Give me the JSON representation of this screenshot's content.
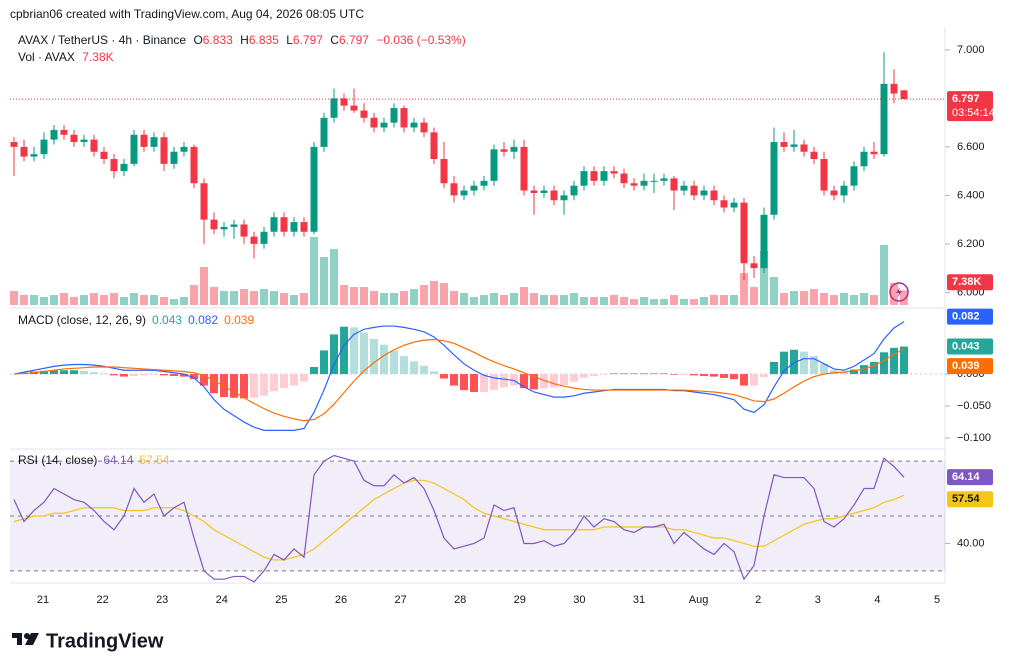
{
  "header": {
    "attribution": "cpbrian06 created with TradingView.com, Aug 04, 2026 08:05 UTC",
    "symbol": "AVAX / TetherUS · 4h · Binance",
    "o": "O",
    "h": "H",
    "l": "L",
    "c": "C",
    "change": "−0.036 (−0.53%)",
    "countdown": "03:54:14"
  },
  "brand": "TradingView",
  "time_axis": {
    "labels": [
      "21",
      "22",
      "23",
      "24",
      "25",
      "26",
      "27",
      "28",
      "29",
      "30",
      "31",
      "Aug",
      "2",
      "3",
      "4",
      "5"
    ]
  },
  "chart_data": [
    {
      "type": "candlestick",
      "colors": {
        "up": "#089981",
        "down": "#f23645"
      },
      "ylim": [
        5.948,
        7.082
      ],
      "yticks": [
        {
          "value": 6.0,
          "label": "6.000"
        },
        {
          "value": 6.2,
          "label": "6.200"
        },
        {
          "value": 6.4,
          "label": "6.400"
        },
        {
          "value": 6.6,
          "label": "6.600"
        },
        {
          "value": 7.0,
          "label": "7.000"
        }
      ],
      "last_price_line": true,
      "candles": [
        [
          6.62,
          6.64,
          6.48,
          6.6
        ],
        [
          6.6,
          6.63,
          6.54,
          6.56
        ],
        [
          6.56,
          6.6,
          6.54,
          6.57
        ],
        [
          6.57,
          6.66,
          6.55,
          6.63
        ],
        [
          6.63,
          6.69,
          6.61,
          6.67
        ],
        [
          6.67,
          6.69,
          6.63,
          6.65
        ],
        [
          6.65,
          6.67,
          6.6,
          6.62
        ],
        [
          6.62,
          6.65,
          6.6,
          6.63
        ],
        [
          6.63,
          6.65,
          6.56,
          6.58
        ],
        [
          6.58,
          6.6,
          6.53,
          6.55
        ],
        [
          6.55,
          6.57,
          6.47,
          6.5
        ],
        [
          6.5,
          6.55,
          6.48,
          6.53
        ],
        [
          6.53,
          6.67,
          6.52,
          6.65
        ],
        [
          6.65,
          6.67,
          6.58,
          6.6
        ],
        [
          6.6,
          6.66,
          6.58,
          6.64
        ],
        [
          6.64,
          6.66,
          6.5,
          6.53
        ],
        [
          6.53,
          6.6,
          6.51,
          6.58
        ],
        [
          6.58,
          6.62,
          6.56,
          6.6
        ],
        [
          6.6,
          6.61,
          6.43,
          6.45
        ],
        [
          6.45,
          6.47,
          6.2,
          6.3
        ],
        [
          6.3,
          6.33,
          6.24,
          6.26
        ],
        [
          6.26,
          6.29,
          6.23,
          6.27
        ],
        [
          6.27,
          6.3,
          6.22,
          6.28
        ],
        [
          6.28,
          6.3,
          6.2,
          6.23
        ],
        [
          6.23,
          6.25,
          6.14,
          6.2
        ],
        [
          6.2,
          6.27,
          6.18,
          6.25
        ],
        [
          6.25,
          6.33,
          6.23,
          6.31
        ],
        [
          6.31,
          6.33,
          6.23,
          6.25
        ],
        [
          6.25,
          6.31,
          6.23,
          6.29
        ],
        [
          6.29,
          6.31,
          6.23,
          6.25
        ],
        [
          6.25,
          6.62,
          6.24,
          6.6
        ],
        [
          6.6,
          6.74,
          6.58,
          6.72
        ],
        [
          6.72,
          6.84,
          6.7,
          6.8
        ],
        [
          6.8,
          6.82,
          6.75,
          6.77
        ],
        [
          6.77,
          6.84,
          6.74,
          6.75
        ],
        [
          6.75,
          6.78,
          6.7,
          6.72
        ],
        [
          6.72,
          6.74,
          6.66,
          6.68
        ],
        [
          6.68,
          6.72,
          6.66,
          6.7
        ],
        [
          6.7,
          6.78,
          6.68,
          6.76
        ],
        [
          6.76,
          6.77,
          6.66,
          6.68
        ],
        [
          6.68,
          6.72,
          6.66,
          6.7
        ],
        [
          6.7,
          6.72,
          6.64,
          6.66
        ],
        [
          6.66,
          6.68,
          6.53,
          6.55
        ],
        [
          6.55,
          6.62,
          6.43,
          6.45
        ],
        [
          6.45,
          6.48,
          6.37,
          6.4
        ],
        [
          6.4,
          6.44,
          6.38,
          6.42
        ],
        [
          6.42,
          6.46,
          6.4,
          6.44
        ],
        [
          6.44,
          6.48,
          6.42,
          6.46
        ],
        [
          6.46,
          6.61,
          6.44,
          6.59
        ],
        [
          6.59,
          6.62,
          6.56,
          6.58
        ],
        [
          6.58,
          6.63,
          6.55,
          6.6
        ],
        [
          6.6,
          6.63,
          6.4,
          6.42
        ],
        [
          6.42,
          6.44,
          6.32,
          6.41
        ],
        [
          6.41,
          6.44,
          6.39,
          6.42
        ],
        [
          6.42,
          6.44,
          6.36,
          6.38
        ],
        [
          6.38,
          6.42,
          6.32,
          6.4
        ],
        [
          6.4,
          6.46,
          6.38,
          6.44
        ],
        [
          6.44,
          6.52,
          6.42,
          6.5
        ],
        [
          6.5,
          6.52,
          6.44,
          6.46
        ],
        [
          6.46,
          6.52,
          6.44,
          6.5
        ],
        [
          6.5,
          6.52,
          6.47,
          6.49
        ],
        [
          6.49,
          6.51,
          6.43,
          6.45
        ],
        [
          6.45,
          6.47,
          6.42,
          6.44
        ],
        [
          6.44,
          6.49,
          6.42,
          6.46
        ],
        [
          6.46,
          6.49,
          6.41,
          6.46
        ],
        [
          6.46,
          6.49,
          6.44,
          6.47
        ],
        [
          6.47,
          6.48,
          6.34,
          6.42
        ],
        [
          6.42,
          6.46,
          6.4,
          6.44
        ],
        [
          6.44,
          6.46,
          6.38,
          6.4
        ],
        [
          6.4,
          6.44,
          6.38,
          6.42
        ],
        [
          6.42,
          6.44,
          6.36,
          6.38
        ],
        [
          6.38,
          6.4,
          6.33,
          6.35
        ],
        [
          6.35,
          6.39,
          6.33,
          6.37
        ],
        [
          6.37,
          6.39,
          6.05,
          6.12
        ],
        [
          6.12,
          6.15,
          6.06,
          6.1
        ],
        [
          6.1,
          6.35,
          6.08,
          6.32
        ],
        [
          6.32,
          6.68,
          6.3,
          6.62
        ],
        [
          6.62,
          6.66,
          6.58,
          6.6
        ],
        [
          6.6,
          6.67,
          6.58,
          6.61
        ],
        [
          6.61,
          6.63,
          6.56,
          6.58
        ],
        [
          6.58,
          6.6,
          6.53,
          6.55
        ],
        [
          6.55,
          6.58,
          6.4,
          6.42
        ],
        [
          6.42,
          6.44,
          6.38,
          6.4
        ],
        [
          6.4,
          6.46,
          6.37,
          6.44
        ],
        [
          6.44,
          6.54,
          6.42,
          6.52
        ],
        [
          6.52,
          6.6,
          6.5,
          6.58
        ],
        [
          6.58,
          6.62,
          6.55,
          6.57
        ],
        [
          6.57,
          6.99,
          6.56,
          6.86
        ],
        [
          6.86,
          6.92,
          6.78,
          6.82
        ],
        [
          6.833,
          6.835,
          6.797,
          6.797
        ]
      ]
    },
    {
      "type": "volume",
      "title": "Vol · AVAX",
      "ylim": [
        0,
        137500
      ],
      "value_labels": {
        "89": "7.38K"
      },
      "values": [
        7000,
        5000,
        5000,
        4000,
        5000,
        6000,
        4000,
        5000,
        6000,
        5000,
        6000,
        4000,
        6000,
        5000,
        5000,
        4000,
        3000,
        4000,
        10000,
        19000,
        9000,
        7000,
        7000,
        8000,
        7000,
        8000,
        7000,
        6000,
        5000,
        6000,
        34000,
        24000,
        28000,
        10000,
        9000,
        9000,
        7000,
        6000,
        6000,
        7000,
        8000,
        10000,
        12000,
        11000,
        7000,
        6000,
        4000,
        5000,
        6000,
        5000,
        6000,
        9000,
        6000,
        5000,
        5000,
        5000,
        6000,
        4000,
        4000,
        4000,
        5000,
        4000,
        3000,
        4000,
        3000,
        3000,
        5000,
        3000,
        3000,
        4000,
        5000,
        5000,
        5000,
        16000,
        9000,
        27000,
        14000,
        6000,
        7000,
        7000,
        8000,
        6000,
        5000,
        6000,
        5000,
        6000,
        5000,
        30000,
        11000,
        7380
      ]
    },
    {
      "type": "macd",
      "title": "MACD (close, 12, 26, 9)",
      "ylim": [
        -0.114,
        0.097
      ],
      "yticks": [
        {
          "value": 0,
          "label": "0.000"
        },
        {
          "value": -0.05,
          "label": "−0.050"
        },
        {
          "value": -0.1,
          "label": "−0.100"
        }
      ],
      "colors": {
        "macd": "#2962ff",
        "signal": "#ff6d00",
        "up_strong": "#26a69a",
        "up_weak": "#b2dfdb",
        "down_strong": "#ff5252",
        "down_weak": "#ffcdd2"
      },
      "histogram": [
        0.0,
        0.002,
        0.004,
        0.005,
        0.006,
        0.006,
        0.006,
        0.005,
        0.003,
        0.001,
        -0.002,
        -0.004,
        -0.003,
        -0.002,
        -0.001,
        -0.002,
        -0.003,
        -0.004,
        -0.008,
        -0.018,
        -0.03,
        -0.036,
        -0.037,
        -0.038,
        -0.037,
        -0.034,
        -0.027,
        -0.022,
        -0.018,
        -0.012,
        0.011,
        0.037,
        0.062,
        0.074,
        0.073,
        0.065,
        0.055,
        0.046,
        0.037,
        0.028,
        0.02,
        0.013,
        0.004,
        -0.007,
        -0.018,
        -0.025,
        -0.028,
        -0.028,
        -0.025,
        -0.021,
        -0.018,
        -0.022,
        -0.024,
        -0.022,
        -0.021,
        -0.017,
        -0.012,
        -0.006,
        -0.003,
        -0.001,
        0.001,
        0.001,
        0.001,
        0.001,
        0.001,
        0.001,
        -0.001,
        -0.001,
        -0.002,
        -0.003,
        -0.004,
        -0.006,
        -0.008,
        -0.018,
        -0.018,
        -0.005,
        0.019,
        0.035,
        0.038,
        0.035,
        0.028,
        0.016,
        0.006,
        0.003,
        0.007,
        0.014,
        0.019,
        0.034,
        0.041,
        0.043
      ],
      "macd": [
        0.0,
        0.003,
        0.006,
        0.009,
        0.012,
        0.014,
        0.015,
        0.015,
        0.014,
        0.012,
        0.009,
        0.006,
        0.006,
        0.006,
        0.006,
        0.004,
        0.002,
        0.0,
        -0.006,
        -0.02,
        -0.04,
        -0.055,
        -0.065,
        -0.075,
        -0.083,
        -0.088,
        -0.088,
        -0.088,
        -0.088,
        -0.085,
        -0.06,
        -0.025,
        0.015,
        0.045,
        0.062,
        0.07,
        0.073,
        0.075,
        0.075,
        0.073,
        0.07,
        0.066,
        0.058,
        0.045,
        0.03,
        0.016,
        0.006,
        -0.002,
        -0.006,
        -0.008,
        -0.01,
        -0.02,
        -0.028,
        -0.032,
        -0.036,
        -0.036,
        -0.034,
        -0.03,
        -0.028,
        -0.026,
        -0.024,
        -0.024,
        -0.024,
        -0.024,
        -0.024,
        -0.024,
        -0.026,
        -0.026,
        -0.028,
        -0.03,
        -0.032,
        -0.036,
        -0.04,
        -0.055,
        -0.06,
        -0.048,
        -0.02,
        0.005,
        0.018,
        0.024,
        0.024,
        0.016,
        0.008,
        0.006,
        0.012,
        0.022,
        0.032,
        0.055,
        0.072,
        0.082
      ],
      "signal": [
        0.0,
        0.001,
        0.002,
        0.004,
        0.006,
        0.008,
        0.009,
        0.01,
        0.011,
        0.011,
        0.011,
        0.01,
        0.009,
        0.008,
        0.007,
        0.006,
        0.005,
        0.004,
        0.002,
        -0.002,
        -0.01,
        -0.019,
        -0.028,
        -0.037,
        -0.046,
        -0.054,
        -0.061,
        -0.066,
        -0.07,
        -0.073,
        -0.071,
        -0.062,
        -0.047,
        -0.029,
        -0.011,
        0.005,
        0.018,
        0.029,
        0.038,
        0.045,
        0.05,
        0.053,
        0.054,
        0.052,
        0.048,
        0.041,
        0.034,
        0.026,
        0.019,
        0.013,
        0.008,
        0.002,
        -0.004,
        -0.01,
        -0.015,
        -0.019,
        -0.022,
        -0.024,
        -0.025,
        -0.025,
        -0.025,
        -0.025,
        -0.025,
        -0.025,
        -0.025,
        -0.025,
        -0.025,
        -0.025,
        -0.026,
        -0.027,
        -0.028,
        -0.03,
        -0.032,
        -0.037,
        -0.042,
        -0.043,
        -0.039,
        -0.03,
        -0.02,
        -0.011,
        -0.004,
        0.0,
        0.002,
        0.003,
        0.005,
        0.008,
        0.013,
        0.021,
        0.031,
        0.039
      ]
    },
    {
      "type": "rsi",
      "title": "RSI (14, close)",
      "ylim": [
        26.7,
        73.3
      ],
      "bands": [
        70,
        50,
        30
      ],
      "yticks": [
        {
          "value": 40,
          "label": "40.00"
        }
      ],
      "colors": {
        "rsi": "#7e57c2",
        "ma": "#f5c518",
        "band": "#7e57c2"
      },
      "rsi": [
        56,
        48,
        52,
        55,
        60,
        58,
        56,
        55,
        52,
        48,
        45,
        50,
        60,
        55,
        58,
        50,
        53,
        55,
        42,
        30,
        27,
        27,
        28,
        28,
        26,
        30,
        36,
        34,
        38,
        35,
        65,
        70,
        72,
        71,
        70,
        63,
        61,
        61,
        65,
        62,
        64,
        60,
        52,
        42,
        38,
        39,
        40,
        42,
        54,
        52,
        53,
        40,
        40,
        41,
        39,
        40,
        44,
        50,
        46,
        49,
        48,
        45,
        44,
        46,
        46,
        47,
        40,
        44,
        41,
        38,
        36,
        40,
        37,
        27,
        32,
        50,
        65,
        64,
        64,
        64,
        60,
        48,
        46,
        49,
        54,
        60,
        60,
        71,
        68,
        64.14
      ],
      "ma": [
        48,
        49,
        50,
        50,
        51,
        51,
        52,
        53,
        53,
        53,
        53,
        52,
        52,
        52,
        53,
        53,
        53,
        52,
        50,
        48,
        45,
        43,
        41,
        39,
        37,
        35,
        34,
        34,
        35,
        36,
        38,
        41,
        44,
        47,
        50,
        53,
        56,
        58,
        60,
        62,
        63,
        63,
        62,
        60,
        58,
        56,
        53,
        51,
        50,
        49,
        48,
        47,
        46,
        45,
        45,
        45,
        45,
        45,
        45,
        46,
        46,
        46,
        46,
        46,
        46,
        46,
        45,
        45,
        44,
        43,
        42,
        42,
        41,
        40,
        39,
        39,
        41,
        43,
        45,
        47,
        48,
        49,
        49,
        50,
        51,
        52,
        53,
        55,
        56,
        57.54
      ]
    }
  ]
}
